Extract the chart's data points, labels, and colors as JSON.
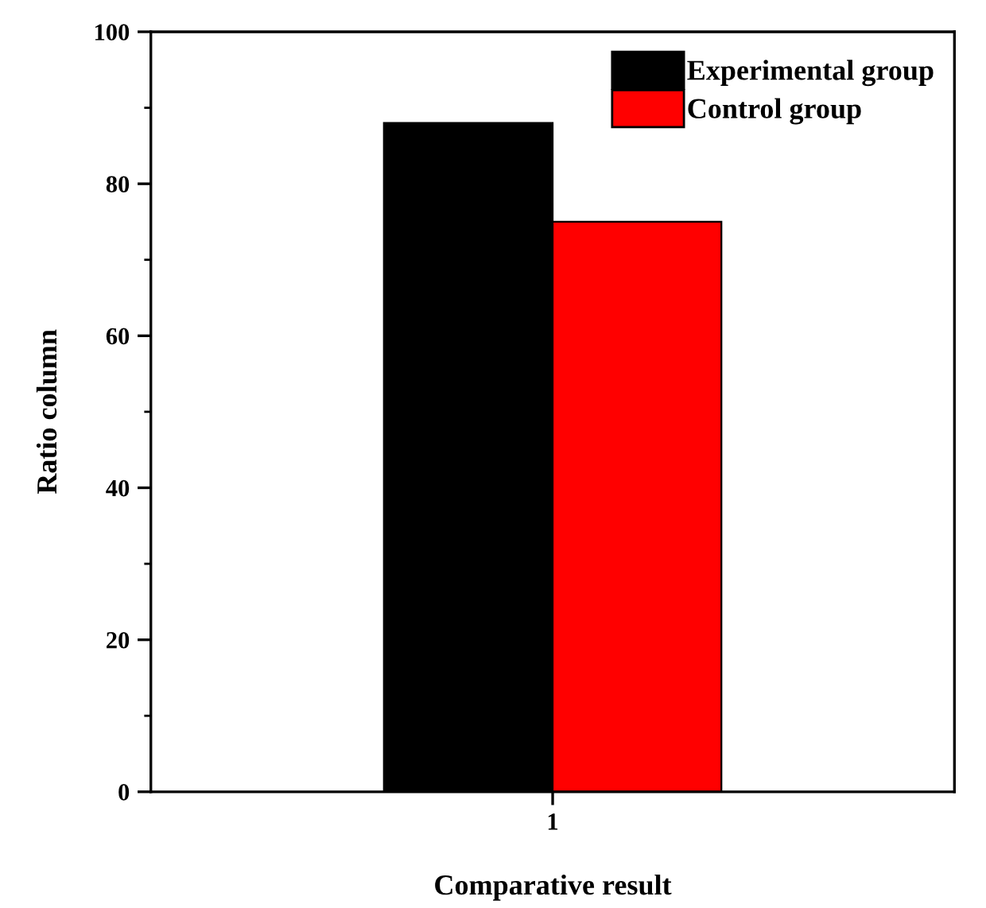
{
  "chart_data": {
    "type": "bar",
    "xlabel": "Comparative result",
    "ylabel": "Ratio column",
    "categories": [
      "1"
    ],
    "series": [
      {
        "name": "Experimental group",
        "color": "#000000",
        "values": [
          88
        ]
      },
      {
        "name": "Control group",
        "color": "#ff0000",
        "values": [
          75
        ]
      }
    ],
    "ylim": [
      0,
      100
    ],
    "yticks": [
      0,
      20,
      40,
      60,
      80,
      100
    ],
    "grid": false,
    "legend": "top right"
  }
}
